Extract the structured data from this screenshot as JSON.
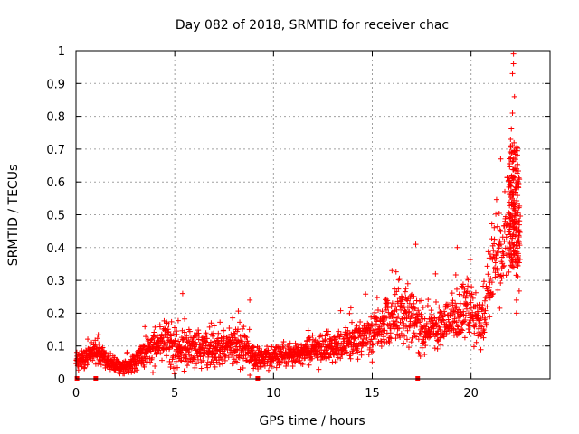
{
  "chart_data": {
    "type": "scatter",
    "title": "Day 082 of 2018, SRMTID for receiver chac",
    "xlabel": "GPS time / hours",
    "ylabel": "SRMTID / TECUs",
    "xlim": [
      0,
      24
    ],
    "ylim": [
      0,
      1
    ],
    "xticks": [
      0,
      5,
      10,
      15,
      20
    ],
    "yticks": [
      0,
      0.1,
      0.2,
      0.3,
      0.4,
      0.5,
      0.6,
      0.7,
      0.8,
      0.9,
      1
    ],
    "x_tick_labels": [
      "0",
      "5",
      "10",
      "15",
      "20"
    ],
    "y_tick_labels": [
      "0",
      "0.1",
      "0.2",
      "0.3",
      "0.4",
      "0.5",
      "0.6",
      "0.7",
      "0.8",
      "0.9",
      "1"
    ],
    "grid": true,
    "marker": "plus",
    "series_color": "#ff0000",
    "series": [
      {
        "name": "SRMTID",
        "profile": {
          "x": [
            0.0,
            0.5,
            1.0,
            1.5,
            2.0,
            2.5,
            3.0,
            3.5,
            4.0,
            4.5,
            5.0,
            5.5,
            6.0,
            6.5,
            7.0,
            7.5,
            8.0,
            8.5,
            9.0,
            9.5,
            10.0,
            10.5,
            11.0,
            11.5,
            12.0,
            12.5,
            13.0,
            13.5,
            14.0,
            14.5,
            15.0,
            15.5,
            16.0,
            16.5,
            17.0,
            17.5,
            18.0,
            18.5,
            19.0,
            19.5,
            20.0,
            20.5,
            21.0,
            21.5,
            22.0,
            22.5
          ],
          "median": [
            0.05,
            0.06,
            0.09,
            0.06,
            0.04,
            0.035,
            0.05,
            0.08,
            0.1,
            0.13,
            0.09,
            0.1,
            0.09,
            0.09,
            0.09,
            0.09,
            0.1,
            0.1,
            0.06,
            0.06,
            0.07,
            0.07,
            0.07,
            0.08,
            0.09,
            0.09,
            0.1,
            0.1,
            0.12,
            0.12,
            0.13,
            0.17,
            0.19,
            0.2,
            0.18,
            0.15,
            0.16,
            0.16,
            0.17,
            0.21,
            0.2,
            0.16,
            0.32,
            0.4,
            0.5,
            0.42
          ],
          "spread": [
            0.025,
            0.025,
            0.03,
            0.025,
            0.02,
            0.02,
            0.03,
            0.04,
            0.05,
            0.05,
            0.06,
            0.06,
            0.05,
            0.05,
            0.05,
            0.05,
            0.06,
            0.06,
            0.03,
            0.03,
            0.03,
            0.03,
            0.03,
            0.03,
            0.04,
            0.04,
            0.04,
            0.05,
            0.05,
            0.05,
            0.06,
            0.07,
            0.08,
            0.08,
            0.07,
            0.06,
            0.05,
            0.06,
            0.06,
            0.07,
            0.07,
            0.07,
            0.1,
            0.12,
            0.16,
            0.12
          ]
        },
        "outliers": [
          {
            "x": 5.4,
            "y": 0.26
          },
          {
            "x": 8.8,
            "y": 0.24
          },
          {
            "x": 16.0,
            "y": 0.33
          },
          {
            "x": 17.2,
            "y": 0.41
          },
          {
            "x": 18.2,
            "y": 0.32
          },
          {
            "x": 19.3,
            "y": 0.4
          },
          {
            "x": 21.5,
            "y": 0.67
          },
          {
            "x": 22.0,
            "y": 0.73
          },
          {
            "x": 22.1,
            "y": 0.81
          },
          {
            "x": 22.2,
            "y": 0.86
          },
          {
            "x": 22.1,
            "y": 0.93
          },
          {
            "x": 22.15,
            "y": 0.96
          },
          {
            "x": 22.15,
            "y": 0.99
          },
          {
            "x": 22.3,
            "y": 0.2
          },
          {
            "x": 22.3,
            "y": 0.24
          }
        ]
      }
    ],
    "gap_markers_x": [
      0.05,
      1.0,
      9.2,
      17.3
    ]
  }
}
